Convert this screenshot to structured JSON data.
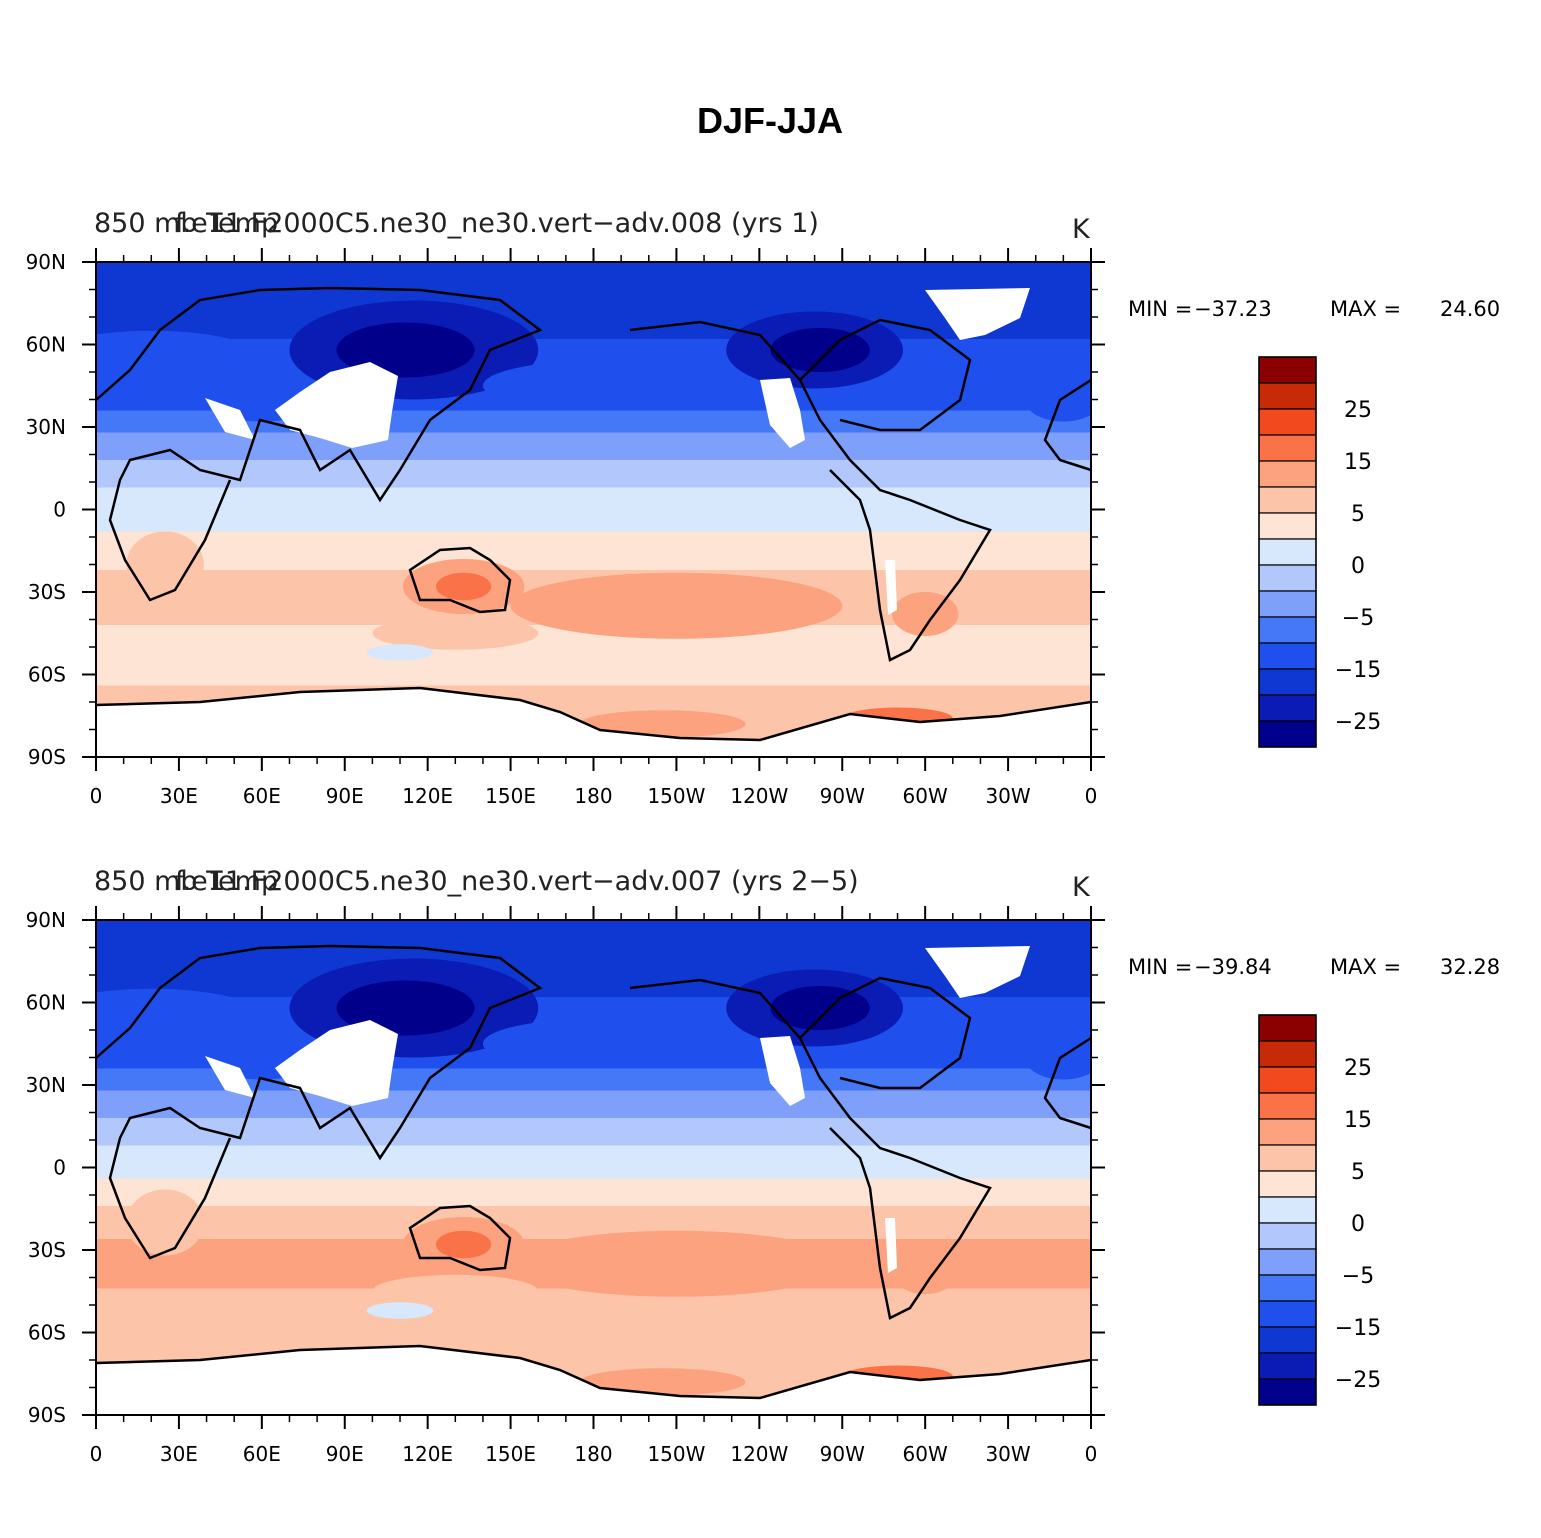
{
  "figure": {
    "title": "DJF-JJA",
    "colors": {
      "levels": [
        "#00008b",
        "#0a1cb4",
        "#0f37d2",
        "#1f50ee",
        "#4478f7",
        "#7ea0fa",
        "#b2c8fc",
        "#d7e8fd",
        "#fde4d4",
        "#fcc4a8",
        "#fca27f",
        "#fa7348",
        "#f04a1e",
        "#c72a07",
        "#8b0000"
      ],
      "land_mask": "#ffffff",
      "coast": "#000000"
    },
    "colorbar_labels": [
      "25",
      "15",
      "5",
      "0",
      "−5",
      "−15",
      "−25"
    ],
    "lat_labels": [
      "90N",
      "60N",
      "30N",
      "0",
      "30S",
      "60S",
      "90S"
    ],
    "lon_labels": [
      "0",
      "30E",
      "60E",
      "90E",
      "120E",
      "150E",
      "180",
      "150W",
      "120W",
      "90W",
      "60W",
      "30W",
      "0"
    ],
    "panels": [
      {
        "left_title": "850 mb Temp",
        "center_title": "f.e11.F2000C5.ne30_ne30.vert−adv.008 (yrs 1)",
        "units": "K",
        "min_label": "MIN =",
        "min_value": "−37.23",
        "max_label": "MAX =",
        "max_value": "24.60"
      },
      {
        "left_title": "850 mb Temp",
        "center_title": "f.e11.F2000C5.ne30_ne30.vert−adv.007 (yrs 2−5)",
        "units": "K",
        "min_label": "MIN =",
        "min_value": "−39.84",
        "max_label": "MAX =",
        "max_value": "32.28"
      }
    ]
  }
}
